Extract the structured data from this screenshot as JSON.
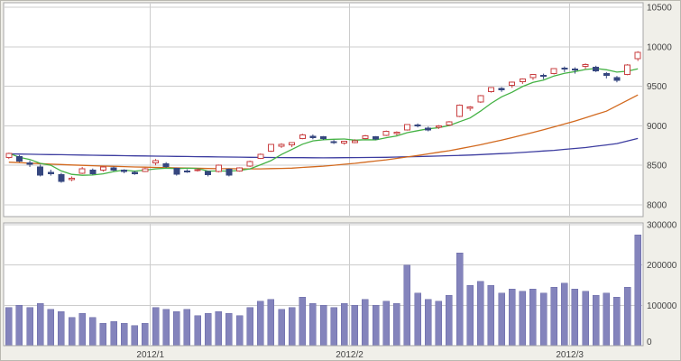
{
  "chart_data": {
    "type": "candlestick",
    "title": "",
    "x_axis": {
      "kind": "time",
      "labels": [
        {
          "index": 14,
          "label": "2012/1"
        },
        {
          "index": 33,
          "label": "2012/2"
        },
        {
          "index": 54,
          "label": "2012/3"
        }
      ]
    },
    "price_axis": {
      "min": 8000,
      "max": 10500,
      "ticks": [
        10500,
        10000,
        9500,
        9000,
        8500,
        8000
      ]
    },
    "volume_axis": {
      "min": 0,
      "max": 300000,
      "ticks": [
        300000,
        200000,
        100000,
        0
      ]
    },
    "grid": true,
    "open": [
      8600,
      8610,
      8530,
      8480,
      8410,
      8380,
      8320,
      8400,
      8440,
      8440,
      8470,
      8440,
      8410,
      8420,
      8530,
      8520,
      8460,
      8430,
      8440,
      8420,
      8420,
      8450,
      8430,
      8490,
      8590,
      8680,
      8740,
      8760,
      8840,
      8870,
      8860,
      8800,
      8780,
      8790,
      8840,
      8860,
      8880,
      8910,
      8950,
      9010,
      8970,
      8980,
      9010,
      9120,
      9230,
      9300,
      9430,
      9470,
      9510,
      9560,
      9610,
      9640,
      9660,
      9730,
      9720,
      9750,
      9740,
      9660,
      9610,
      9650,
      9850
    ],
    "high": [
      8660,
      8630,
      8560,
      8510,
      8445,
      8405,
      8360,
      8480,
      8460,
      8490,
      8485,
      8450,
      8430,
      8470,
      8580,
      8540,
      8470,
      8450,
      8463,
      8430,
      8510,
      8460,
      8475,
      8560,
      8650,
      8770,
      8780,
      8790,
      8900,
      8890,
      8870,
      8820,
      8810,
      8830,
      8885,
      8870,
      8940,
      8930,
      9020,
      9030,
      8990,
      9010,
      9060,
      9270,
      9250,
      9390,
      9490,
      9490,
      9560,
      9600,
      9650,
      9660,
      9730,
      9750,
      9740,
      9790,
      9760,
      9680,
      9630,
      9780,
      9944
    ],
    "low": [
      8580,
      8540,
      8480,
      8360,
      8370,
      8280,
      8300,
      8390,
      8380,
      8420,
      8425,
      8400,
      8380,
      8415,
      8500,
      8470,
      8370,
      8405,
      8420,
      8360,
      8410,
      8360,
      8420,
      8480,
      8580,
      8670,
      8720,
      8730,
      8830,
      8830,
      8820,
      8770,
      8760,
      8780,
      8830,
      8820,
      8870,
      8880,
      8940,
      8980,
      8930,
      8960,
      9000,
      9110,
      9190,
      9290,
      9420,
      9430,
      9480,
      9530,
      9580,
      9590,
      9650,
      9680,
      9660,
      9720,
      9680,
      9600,
      9550,
      9640,
      9820
    ],
    "close": [
      8653,
      8552,
      8519,
      8377,
      8402,
      8296,
      8336,
      8459,
      8395,
      8479,
      8440,
      8423,
      8399,
      8455,
      8560,
      8488,
      8390,
      8422,
      8447,
      8385,
      8500,
      8378,
      8466,
      8550,
      8639,
      8766,
      8765,
      8785,
      8883,
      8849,
      8841,
      8793,
      8802,
      8809,
      8876,
      8831,
      8929,
      8917,
      9015,
      9002,
      8947,
      8999,
      9052,
      9260,
      9238,
      9384,
      9485,
      9463,
      9554,
      9595,
      9647,
      9633,
      9722,
      9723,
      9707,
      9777,
      9698,
      9637,
      9576,
      9768,
      9930
    ],
    "volume": [
      95000,
      100000,
      95000,
      105000,
      90000,
      85000,
      70000,
      80000,
      70000,
      55000,
      60000,
      55000,
      50000,
      55000,
      95000,
      90000,
      85000,
      90000,
      75000,
      80000,
      85000,
      80000,
      75000,
      95000,
      110000,
      115000,
      90000,
      95000,
      120000,
      105000,
      100000,
      95000,
      105000,
      100000,
      115000,
      100000,
      110000,
      105000,
      200000,
      130000,
      115000,
      110000,
      125000,
      230000,
      150000,
      160000,
      150000,
      130000,
      140000,
      135000,
      140000,
      130000,
      145000,
      155000,
      140000,
      135000,
      125000,
      130000,
      120000,
      145000,
      275000
    ],
    "series": [
      {
        "name": "ma-long",
        "type": "points",
        "color": "#3d3da0",
        "points": [
          [
            0,
            8645
          ],
          [
            6,
            8632
          ],
          [
            12,
            8620
          ],
          [
            18,
            8610
          ],
          [
            24,
            8600
          ],
          [
            30,
            8595
          ],
          [
            36,
            8602
          ],
          [
            40,
            8614
          ],
          [
            44,
            8630
          ],
          [
            48,
            8655
          ],
          [
            52,
            8690
          ],
          [
            55,
            8725
          ],
          [
            58,
            8775
          ],
          [
            60,
            8840
          ]
        ]
      },
      {
        "name": "ma-mid",
        "type": "points",
        "color": "#d2691e",
        "points": [
          [
            0,
            8540
          ],
          [
            4,
            8515
          ],
          [
            8,
            8495
          ],
          [
            12,
            8480
          ],
          [
            16,
            8468
          ],
          [
            20,
            8458
          ],
          [
            24,
            8455
          ],
          [
            27,
            8465
          ],
          [
            30,
            8490
          ],
          [
            33,
            8525
          ],
          [
            36,
            8570
          ],
          [
            39,
            8625
          ],
          [
            42,
            8685
          ],
          [
            45,
            8760
          ],
          [
            48,
            8850
          ],
          [
            51,
            8950
          ],
          [
            54,
            9060
          ],
          [
            57,
            9185
          ],
          [
            60,
            9390
          ]
        ]
      },
      {
        "name": "ma-short",
        "type": "sma_of_close",
        "period": 5,
        "color": "#44b244"
      }
    ],
    "colors": {
      "up": "#c94042",
      "up_fill": "#ffffff",
      "down": "#36477f",
      "volume": "#8484bc",
      "volume_edge": "#6868a6",
      "grid": "#cccccc",
      "border": "#a6a6a6",
      "frame": "#b9b8b0",
      "label": "#444444",
      "plot_bg": "#ffffff",
      "page_bg": "#f0efe9"
    }
  }
}
